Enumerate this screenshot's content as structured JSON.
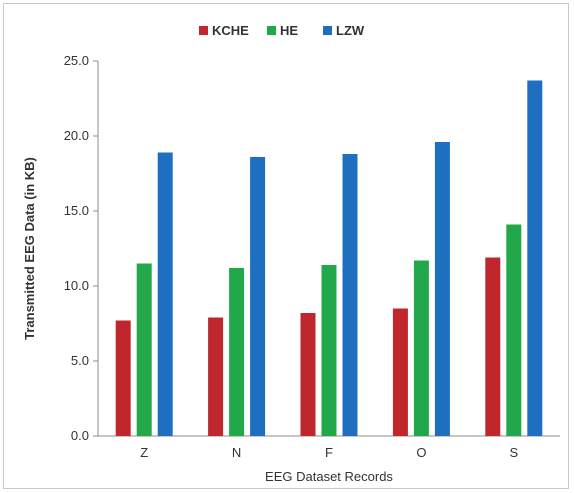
{
  "chart_data": {
    "type": "bar",
    "title": "",
    "xlabel": "EEG Dataset Records",
    "ylabel": "Transmitted EEG Data (in KB)",
    "categories": [
      "Z",
      "N",
      "F",
      "O",
      "S"
    ],
    "ylim": [
      0,
      25
    ],
    "yticks": [
      "0.0",
      "5.0",
      "10.0",
      "15.0",
      "20.0",
      "25.0"
    ],
    "grid": false,
    "legend_position": "top-center",
    "series": [
      {
        "name": "KCHE",
        "color": "#c0272d",
        "values": [
          7.7,
          7.9,
          8.2,
          8.5,
          11.9
        ]
      },
      {
        "name": "HE",
        "color": "#22a84a",
        "values": [
          11.5,
          11.2,
          11.4,
          11.7,
          14.1
        ]
      },
      {
        "name": "LZW",
        "color": "#1f6fc1",
        "values": [
          18.9,
          18.6,
          18.8,
          19.6,
          23.7
        ]
      }
    ]
  }
}
